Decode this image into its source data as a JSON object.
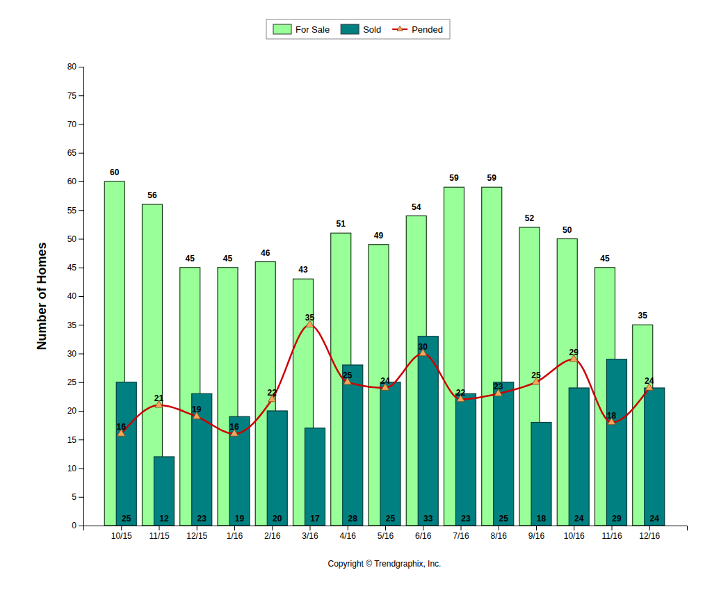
{
  "chart_data": {
    "type": "bar",
    "y_label": "Number of Homes",
    "annotations": [
      "Copyright © Trendgraphix, Inc."
    ],
    "categories": [
      "10/15",
      "11/15",
      "12/15",
      "1/16",
      "2/16",
      "3/16",
      "4/16",
      "5/16",
      "6/16",
      "7/16",
      "8/16",
      "9/16",
      "10/16",
      "11/16",
      "12/16"
    ],
    "series": [
      {
        "name": "For Sale",
        "type": "bar",
        "color": "#99ff99",
        "values": [
          60,
          56,
          45,
          45,
          46,
          43,
          51,
          49,
          54,
          59,
          59,
          52,
          50,
          45,
          35
        ]
      },
      {
        "name": "Sold",
        "type": "bar",
        "color": "#008080",
        "values": [
          25,
          12,
          23,
          19,
          20,
          17,
          28,
          25,
          33,
          23,
          25,
          18,
          24,
          29,
          24
        ]
      },
      {
        "name": "Pended",
        "type": "line",
        "color": "#cc0000",
        "marker": "triangle",
        "values": [
          16,
          21,
          19,
          16,
          22,
          35,
          25,
          24,
          30,
          22,
          23,
          25,
          29,
          18,
          24
        ]
      }
    ],
    "ylim": [
      0,
      80
    ],
    "yticks": [
      0,
      5,
      10,
      15,
      20,
      25,
      30,
      35,
      40,
      45,
      50,
      55,
      60,
      65,
      70,
      75,
      80
    ],
    "grid": false,
    "legend": "top",
    "data_labels": true
  }
}
